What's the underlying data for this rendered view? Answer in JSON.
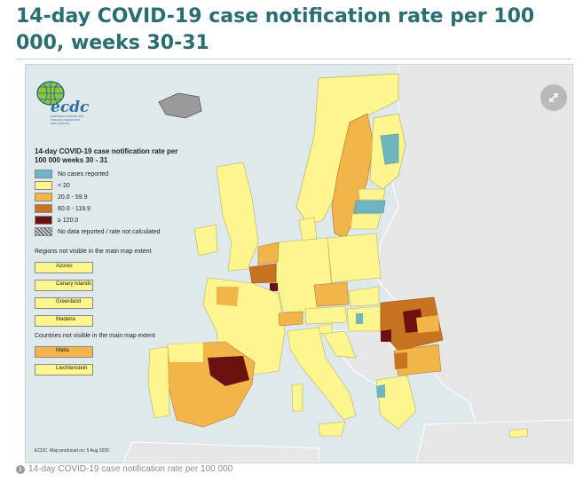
{
  "title": "14-day COVID-19 case notification rate per 100 000, weeks 30-31",
  "map": {
    "logo": {
      "text": "ecdc",
      "subtext": "EUROPEAN CENTRE FOR DISEASE PREVENTION AND CONTROL"
    },
    "legend": {
      "heading": "14-day COVID-19 case notification rate per 100 000 weeks 30 - 31",
      "items": [
        {
          "label": "No cases reported",
          "color": "#6fb6c0"
        },
        {
          "label": "< 20",
          "color": "#fdf58e"
        },
        {
          "label": "20.0 - 59.9",
          "color": "#f2b54a"
        },
        {
          "label": "60.0 - 119.9",
          "color": "#c8731f"
        },
        {
          "label": "≥ 120.0",
          "color": "#6b1210"
        },
        {
          "label": "No data reported / rate not calculated",
          "color": "hatched"
        }
      ],
      "regions_heading": "Regions not visible in the main map extent",
      "regions": [
        {
          "label": "Azores",
          "color": "#fdf58e"
        },
        {
          "label": "Canary Islands",
          "color": "#fdf58e"
        },
        {
          "label": "Greenland",
          "color": "#fdf58e"
        },
        {
          "label": "Madeira",
          "color": "#fdf58e"
        }
      ],
      "countries_heading": "Countries not visible in the main map extent",
      "countries": [
        {
          "label": "Malta",
          "color": "#f2b54a"
        },
        {
          "label": "Liechtenstein",
          "color": "#fdf58e"
        }
      ]
    },
    "produced": "ECDC. Map produced on: 5 Aug 2020",
    "expand_icon": "expand-icon"
  },
  "caption": "14-day COVID-19 case notification rate per 100 000"
}
